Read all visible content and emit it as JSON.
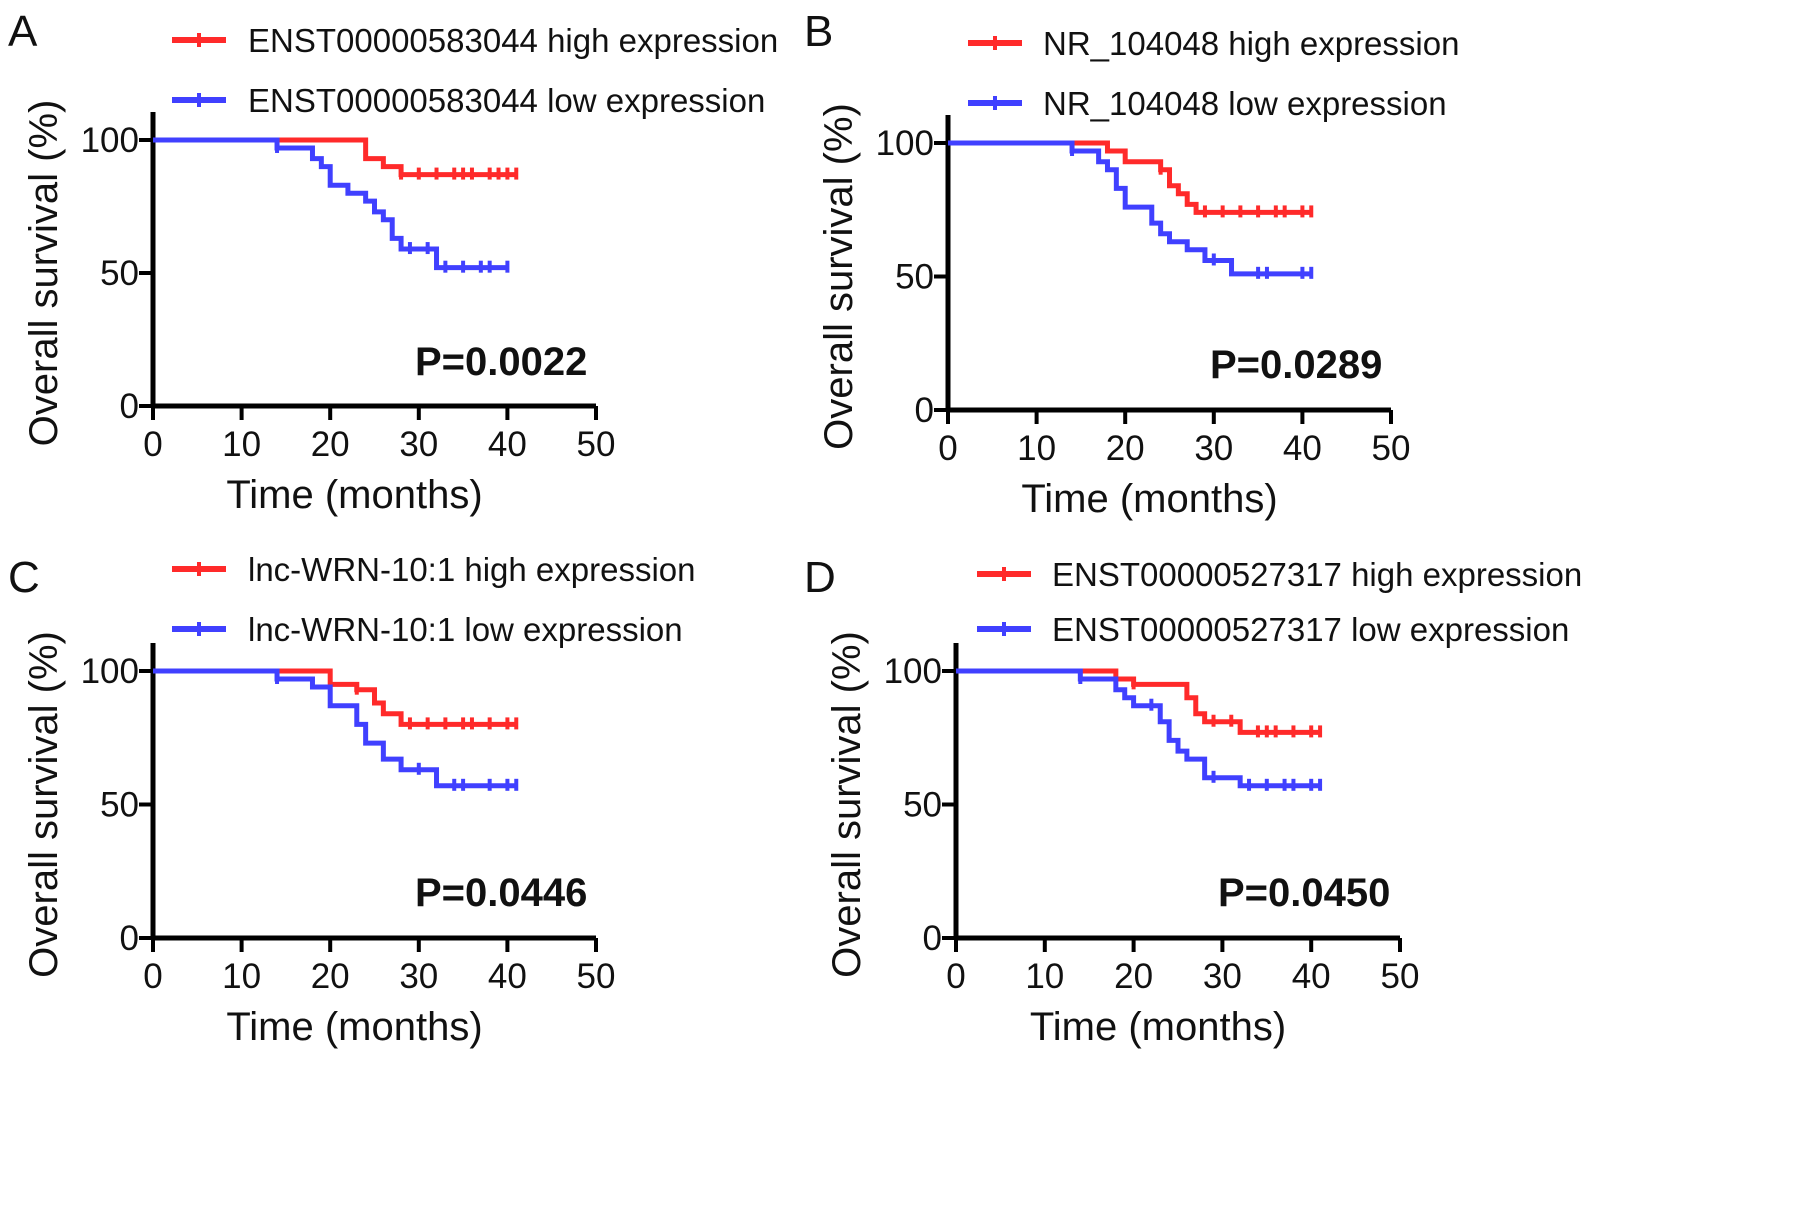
{
  "chart_data": [
    {
      "panel": "A",
      "type": "line",
      "xlabel": "Time (months)",
      "ylabel": "Overall survival (%)",
      "xlim": [
        0,
        50
      ],
      "ylim": [
        0,
        100
      ],
      "xticks": [
        "0",
        "10",
        "20",
        "30",
        "40",
        "50"
      ],
      "yticks": [
        "0",
        "50",
        "100"
      ],
      "annotation": "P=0.0022",
      "series": [
        {
          "name": "ENST00000583044 high expression",
          "color": "#ff2a2a",
          "x": [
            0,
            24,
            26,
            28,
            41
          ],
          "y": [
            100,
            93,
            90,
            87,
            87
          ],
          "censored_x": [
            28,
            30,
            32,
            34,
            35,
            36,
            38,
            39,
            40,
            41
          ]
        },
        {
          "name": "ENST00000583044 low expression",
          "color": "#4040ff",
          "x": [
            0,
            14,
            18,
            19,
            20,
            22,
            24,
            25,
            26,
            27,
            28,
            32,
            40
          ],
          "y": [
            100,
            97,
            93,
            90,
            83,
            80,
            77,
            73,
            70,
            63,
            59,
            52,
            52
          ],
          "censored_x": [
            14,
            29,
            31,
            33,
            35,
            37,
            38,
            40
          ]
        }
      ]
    },
    {
      "panel": "B",
      "type": "line",
      "xlabel": "Time (months)",
      "ylabel": "Overall survival (%)",
      "xlim": [
        0,
        50
      ],
      "ylim": [
        0,
        100
      ],
      "xticks": [
        "0",
        "10",
        "20",
        "30",
        "40",
        "50"
      ],
      "yticks": [
        "0",
        "50",
        "100"
      ],
      "annotation": "P=0.0289",
      "series": [
        {
          "name": "NR_104048 high expression",
          "color": "#ff2a2a",
          "x": [
            0,
            18,
            20,
            24,
            25,
            26,
            27,
            28,
            41
          ],
          "y": [
            100,
            97,
            93,
            90,
            84,
            81,
            77,
            74,
            74
          ],
          "censored_x": [
            24,
            29,
            31,
            33,
            35,
            37,
            38,
            40,
            41
          ]
        },
        {
          "name": "NR_104048 low expression",
          "color": "#4040ff",
          "x": [
            0,
            14,
            17,
            18,
            19,
            20,
            23,
            24,
            25,
            27,
            29,
            32,
            41
          ],
          "y": [
            100,
            97,
            93,
            90,
            83,
            76,
            70,
            66,
            63,
            60,
            56,
            51,
            51
          ],
          "censored_x": [
            14,
            30,
            35,
            36,
            40,
            41
          ]
        }
      ]
    },
    {
      "panel": "C",
      "type": "line",
      "xlabel": "Time (months)",
      "ylabel": "Overall survival (%)",
      "xlim": [
        0,
        50
      ],
      "ylim": [
        0,
        100
      ],
      "xticks": [
        "0",
        "10",
        "20",
        "30",
        "40",
        "50"
      ],
      "yticks": [
        "0",
        "50",
        "100"
      ],
      "annotation": "P=0.0446",
      "series": [
        {
          "name": "lnc-WRN-10:1 high expression",
          "color": "#ff2a2a",
          "x": [
            0,
            20,
            23,
            25,
            26,
            28,
            41
          ],
          "y": [
            100,
            95,
            93,
            88,
            84,
            80,
            80
          ],
          "censored_x": [
            23,
            29,
            31,
            33,
            35,
            36,
            38,
            40,
            41
          ]
        },
        {
          "name": "lnc-WRN-10:1 low expression",
          "color": "#4040ff",
          "x": [
            0,
            14,
            18,
            20,
            23,
            24,
            26,
            28,
            32,
            41
          ],
          "y": [
            100,
            97,
            94,
            87,
            80,
            73,
            67,
            63,
            57,
            57
          ],
          "censored_x": [
            14,
            30,
            34,
            35,
            38,
            40,
            41
          ]
        }
      ]
    },
    {
      "panel": "D",
      "type": "line",
      "xlabel": "Time (months)",
      "ylabel": "Overall survival (%)",
      "xlim": [
        0,
        50
      ],
      "ylim": [
        0,
        100
      ],
      "xticks": [
        "0",
        "10",
        "20",
        "30",
        "40",
        "50"
      ],
      "yticks": [
        "0",
        "50",
        "100"
      ],
      "annotation": "P=0.0450",
      "series": [
        {
          "name": "ENST00000527317 high expression",
          "color": "#ff2a2a",
          "x": [
            0,
            18,
            20,
            26,
            27,
            28,
            32,
            41
          ],
          "y": [
            100,
            97,
            95,
            90,
            84,
            81,
            77,
            77
          ],
          "censored_x": [
            20,
            29,
            31,
            34,
            35,
            36,
            38,
            40,
            41
          ]
        },
        {
          "name": "ENST00000527317 low expression",
          "color": "#4040ff",
          "x": [
            0,
            14,
            18,
            19,
            20,
            23,
            24,
            25,
            26,
            28,
            32,
            41
          ],
          "y": [
            100,
            97,
            93,
            90,
            87,
            81,
            74,
            70,
            67,
            60,
            57,
            57
          ],
          "censored_x": [
            14,
            22,
            29,
            33,
            35,
            37,
            38,
            40,
            41
          ]
        }
      ]
    }
  ]
}
